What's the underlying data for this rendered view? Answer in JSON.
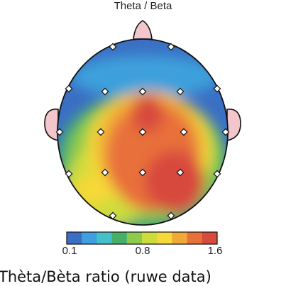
{
  "map_title": "Theta / Beta",
  "colorbar": {
    "ticks": [
      "0.1",
      "0.8",
      "1.6"
    ],
    "colors": [
      "#3a6fc4",
      "#3ea0dc",
      "#46c0c8",
      "#46b06a",
      "#8ccc4a",
      "#ccdc3c",
      "#f6d838",
      "#f0a838",
      "#e8703a",
      "#d84a3c"
    ]
  },
  "caption": "Thèta/Bèta ratio (ruwe data)",
  "colors": {
    "skin": "#f3c6cc",
    "outline": "#111111",
    "low": "#3a6fc4",
    "high": "#d84a3c"
  }
}
